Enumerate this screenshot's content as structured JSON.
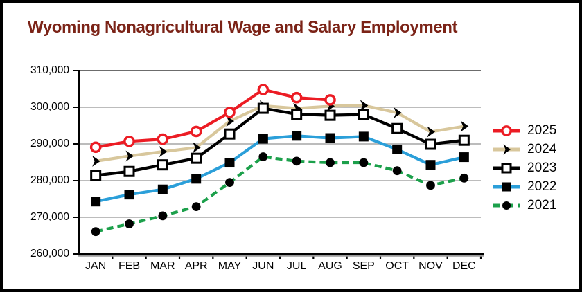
{
  "title": "Wyoming Nonagricultural Wage and Salary Employment",
  "colors": {
    "title_text": "#7B2317",
    "series_2025": "#EC1C24",
    "series_2024": "#D8C79C",
    "series_2023": "#000000",
    "series_2022": "#2B9FD9",
    "series_2021": "#1CA04B",
    "marker_black": "#000000",
    "gridline": "#A6A6A6",
    "axis": "#000000",
    "background": "#FFFFFF",
    "border": "#000000"
  },
  "chart_data": {
    "type": "line",
    "title": "Wyoming Nonagricultural Wage and Salary Employment",
    "xlabel": "",
    "ylabel": "",
    "categories": [
      "JAN",
      "FEB",
      "MAR",
      "APR",
      "MAY",
      "JUN",
      "JUL",
      "AUG",
      "SEP",
      "OCT",
      "NOV",
      "DEC"
    ],
    "ylim": [
      260000,
      310000
    ],
    "ytick_step": 10000,
    "ytick_labels": [
      "310,000",
      "300,000",
      "290,000",
      "280,000",
      "270,000",
      "260,000"
    ],
    "grid": "horizontal",
    "legend_position": "right",
    "series": [
      {
        "name": "2025",
        "line_color": "#EC1C24",
        "line_style": "solid",
        "marker": "open-circle",
        "marker_color": "#EC1C24",
        "values": [
          289100,
          290700,
          291300,
          293400,
          298600,
          304800,
          302600,
          302000
        ]
      },
      {
        "name": "2024",
        "line_color": "#D8C79C",
        "line_style": "solid",
        "marker": "chevron-right",
        "marker_color": "#000000",
        "values": [
          285300,
          286700,
          287900,
          289000,
          296200,
          300400,
          299700,
          300300,
          300500,
          298500,
          293300,
          294800
        ]
      },
      {
        "name": "2023",
        "line_color": "#000000",
        "line_style": "solid",
        "marker": "open-square",
        "marker_color": "#000000",
        "values": [
          281400,
          282500,
          284300,
          286100,
          292700,
          299700,
          298100,
          297800,
          298000,
          294200,
          289900,
          291000
        ]
      },
      {
        "name": "2022",
        "line_color": "#2B9FD9",
        "line_style": "solid",
        "marker": "filled-square",
        "marker_color": "#000000",
        "values": [
          274300,
          276200,
          277600,
          280500,
          284900,
          291400,
          292200,
          291600,
          292000,
          288500,
          284300,
          286400
        ]
      },
      {
        "name": "2021",
        "line_color": "#1CA04B",
        "line_style": "dashed",
        "marker": "filled-circle",
        "marker_color": "#000000",
        "values": [
          266100,
          268200,
          270400,
          272900,
          279500,
          286500,
          285300,
          284900,
          284900,
          282700,
          278700,
          280700
        ]
      }
    ]
  },
  "legend": {
    "items": [
      {
        "label": "2025"
      },
      {
        "label": "2024"
      },
      {
        "label": "2023"
      },
      {
        "label": "2022"
      },
      {
        "label": "2021"
      }
    ]
  }
}
